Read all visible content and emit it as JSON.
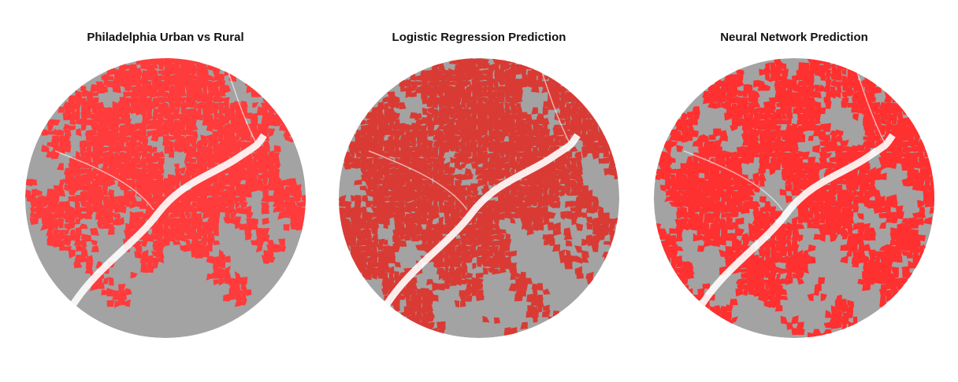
{
  "maps": [
    {
      "title": "Philadelphia Urban vs Rural"
    },
    {
      "title": "Logistic Regression Prediction"
    },
    {
      "title": "Neural Network Prediction"
    }
  ]
}
